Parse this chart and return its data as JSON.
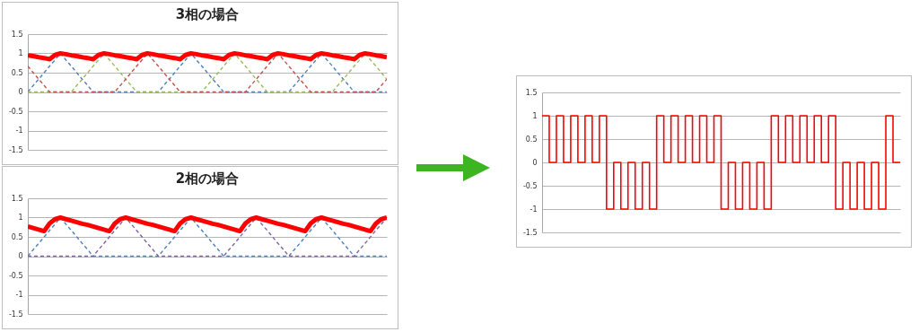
{
  "chart_data": [
    {
      "type": "line",
      "title": "3相の場合",
      "categories": [
        null,
        null,
        null,
        null,
        null,
        null,
        null,
        null,
        null,
        null,
        null,
        null,
        null,
        null,
        null,
        null,
        null,
        null,
        null,
        null,
        null,
        null,
        null,
        null,
        null,
        null,
        null,
        null,
        null,
        null,
        null,
        null,
        null,
        null,
        null,
        null,
        null,
        null,
        null,
        null,
        null,
        null,
        null,
        null,
        null,
        null,
        null,
        null,
        null,
        null,
        null,
        null,
        null,
        null,
        null,
        null,
        null,
        null,
        null,
        null,
        null,
        null,
        null,
        null,
        null,
        null,
        null
      ],
      "ylim": [
        -1.5,
        1.5
      ],
      "yticks": [
        1.5,
        1,
        0.5,
        0,
        -0.5,
        -1,
        -1.5
      ],
      "tick_labels": "y",
      "grid": "y",
      "series": [
        {
          "color": "#4f81bd",
          "line_style": "dashed",
          "values": [
            0,
            0.17,
            0.33,
            0.5,
            0.67,
            0.83,
            1,
            0.83,
            0.67,
            0.5,
            0.33,
            0.17,
            0,
            0,
            0,
            0,
            0,
            0,
            0,
            0,
            0,
            0,
            0,
            0,
            0,
            0.17,
            0.33,
            0.5,
            0.67,
            0.83,
            1,
            0.83,
            0.67,
            0.5,
            0.33,
            0.17,
            0,
            0,
            0,
            0,
            0,
            0,
            0,
            0,
            0,
            0,
            0,
            0,
            0,
            0.17,
            0.33,
            0.5,
            0.67,
            0.83,
            1,
            0.83,
            0.67,
            0.5,
            0.33,
            0.17,
            0,
            0,
            0,
            0,
            0,
            0,
            0
          ]
        },
        {
          "color": "#9bbb59",
          "line_style": "dashed",
          "values": [
            0,
            0,
            0,
            0,
            0,
            0,
            0,
            0,
            0,
            0.17,
            0.33,
            0.5,
            0.67,
            0.83,
            1,
            0.83,
            0.67,
            0.5,
            0.33,
            0.17,
            0,
            0,
            0,
            0,
            0,
            0,
            0,
            0,
            0,
            0,
            0,
            0,
            0,
            0.17,
            0.33,
            0.5,
            0.67,
            0.83,
            1,
            0.83,
            0.67,
            0.5,
            0.33,
            0.17,
            0,
            0,
            0,
            0,
            0,
            0,
            0,
            0,
            0,
            0,
            0,
            0,
            0,
            0.17,
            0.33,
            0.5,
            0.67,
            0.83,
            1,
            0.83,
            0.67,
            0.5,
            0.33
          ]
        },
        {
          "color": "#c0504d",
          "line_style": "dashed",
          "values": [
            0.67,
            0.5,
            0.33,
            0.17,
            0,
            0,
            0,
            0,
            0,
            0,
            0,
            0,
            0,
            0,
            0,
            0,
            0,
            0.17,
            0.33,
            0.5,
            0.67,
            0.83,
            1,
            0.83,
            0.67,
            0.5,
            0.33,
            0.17,
            0,
            0,
            0,
            0,
            0,
            0,
            0,
            0,
            0,
            0,
            0,
            0,
            0,
            0.17,
            0.33,
            0.5,
            0.67,
            0.83,
            1,
            0.83,
            0.67,
            0.5,
            0.33,
            0.17,
            0,
            0,
            0,
            0,
            0,
            0,
            0,
            0,
            0,
            0,
            0,
            0,
            0,
            0.17,
            0.33
          ]
        },
        {
          "color": "#ff0000",
          "line_style": "solid",
          "values": [
            0.95,
            0.93,
            0.9,
            0.88,
            0.85,
            0.96,
            1,
            0.98,
            0.95,
            0.93,
            0.9,
            0.88,
            0.85,
            0.96,
            1,
            0.98,
            0.95,
            0.93,
            0.9,
            0.88,
            0.85,
            0.96,
            1,
            0.98,
            0.95,
            0.93,
            0.9,
            0.88,
            0.85,
            0.96,
            1,
            0.98,
            0.95,
            0.93,
            0.9,
            0.88,
            0.85,
            0.96,
            1,
            0.98,
            0.95,
            0.93,
            0.9,
            0.88,
            0.85,
            0.96,
            1,
            0.98,
            0.95,
            0.93,
            0.9,
            0.88,
            0.85,
            0.96,
            1,
            0.98,
            0.95,
            0.93,
            0.9,
            0.88,
            0.85,
            0.96,
            1,
            0.98,
            0.95,
            0.93,
            0.9
          ]
        }
      ]
    },
    {
      "type": "line",
      "title": "2相の場合",
      "categories": [
        null,
        null,
        null,
        null,
        null,
        null,
        null,
        null,
        null,
        null,
        null,
        null,
        null,
        null,
        null,
        null,
        null,
        null,
        null,
        null,
        null,
        null,
        null,
        null,
        null,
        null,
        null,
        null,
        null,
        null,
        null,
        null,
        null,
        null,
        null,
        null,
        null,
        null,
        null,
        null,
        null,
        null,
        null,
        null,
        null,
        null,
        null,
        null,
        null,
        null,
        null,
        null,
        null,
        null,
        null,
        null,
        null,
        null,
        null,
        null,
        null,
        null,
        null,
        null,
        null,
        null,
        null
      ],
      "ylim": [
        -1.5,
        1.5
      ],
      "yticks": [
        1.5,
        1,
        0.5,
        0,
        -0.5,
        -1,
        -1.5
      ],
      "tick_labels": "y",
      "grid": "y",
      "series": [
        {
          "color": "#4f81bd",
          "line_style": "dashed",
          "values": [
            0,
            0.17,
            0.33,
            0.5,
            0.67,
            0.83,
            1,
            0.83,
            0.67,
            0.5,
            0.33,
            0.17,
            0,
            0,
            0,
            0,
            0,
            0,
            0,
            0,
            0,
            0,
            0,
            0,
            0,
            0.17,
            0.33,
            0.5,
            0.67,
            0.83,
            1,
            0.83,
            0.67,
            0.5,
            0.33,
            0.17,
            0,
            0,
            0,
            0,
            0,
            0,
            0,
            0,
            0,
            0,
            0,
            0,
            0,
            0.17,
            0.33,
            0.5,
            0.67,
            0.83,
            1,
            0.83,
            0.67,
            0.5,
            0.33,
            0.17,
            0,
            0,
            0,
            0,
            0,
            0,
            0
          ]
        },
        {
          "color": "#8064a2",
          "line_style": "dashed",
          "values": [
            0,
            0,
            0,
            0,
            0,
            0,
            0,
            0,
            0,
            0,
            0,
            0,
            0,
            0.17,
            0.33,
            0.5,
            0.67,
            0.83,
            1,
            0.83,
            0.67,
            0.5,
            0.33,
            0.17,
            0,
            0,
            0,
            0,
            0,
            0,
            0,
            0,
            0,
            0,
            0,
            0,
            0,
            0.17,
            0.33,
            0.5,
            0.67,
            0.83,
            1,
            0.83,
            0.67,
            0.5,
            0.33,
            0.17,
            0,
            0,
            0,
            0,
            0,
            0,
            0,
            0,
            0,
            0,
            0,
            0,
            0,
            0.17,
            0.33,
            0.5,
            0.67,
            0.83,
            1
          ]
        },
        {
          "color": "#ff0000",
          "line_style": "solid",
          "values": [
            0.77,
            0.73,
            0.69,
            0.65,
            0.85,
            0.96,
            1,
            0.96,
            0.92,
            0.88,
            0.84,
            0.81,
            0.77,
            0.73,
            0.69,
            0.65,
            0.85,
            0.96,
            1,
            0.96,
            0.92,
            0.88,
            0.84,
            0.81,
            0.77,
            0.73,
            0.69,
            0.65,
            0.85,
            0.96,
            1,
            0.96,
            0.92,
            0.88,
            0.84,
            0.81,
            0.77,
            0.73,
            0.69,
            0.65,
            0.85,
            0.96,
            1,
            0.96,
            0.92,
            0.88,
            0.84,
            0.81,
            0.77,
            0.73,
            0.69,
            0.65,
            0.85,
            0.96,
            1,
            0.96,
            0.92,
            0.88,
            0.84,
            0.81,
            0.77,
            0.73,
            0.69,
            0.65,
            0.85,
            0.96,
            1
          ]
        }
      ]
    },
    {
      "type": "step",
      "categories": [
        null,
        null,
        null,
        null,
        null,
        null,
        null,
        null,
        null,
        null,
        null,
        null,
        null,
        null,
        null,
        null,
        null,
        null,
        null,
        null,
        null,
        null,
        null,
        null,
        null,
        null,
        null,
        null,
        null,
        null,
        null,
        null,
        null,
        null,
        null,
        null,
        null,
        null,
        null,
        null,
        null,
        null,
        null,
        null,
        null,
        null,
        null,
        null,
        null,
        null,
        null
      ],
      "ylim": [
        -1.5,
        1.5
      ],
      "yticks": [
        1.5,
        1,
        0.5,
        0,
        -0.5,
        -1,
        -1.5
      ],
      "tick_labels": "y",
      "grid": "y",
      "series": [
        {
          "color": "#ff0000",
          "line_style": "solid",
          "values": [
            1,
            0,
            1,
            0,
            1,
            0,
            1,
            0,
            1,
            -1,
            0,
            -1,
            0,
            -1,
            0,
            -1,
            1,
            0,
            1,
            0,
            1,
            0,
            1,
            0,
            1,
            -1,
            0,
            -1,
            0,
            -1,
            0,
            -1,
            1,
            0,
            1,
            0,
            1,
            0,
            1,
            0,
            1,
            -1,
            0,
            -1,
            0,
            -1,
            0,
            -1,
            1,
            0,
            0
          ]
        }
      ]
    }
  ]
}
